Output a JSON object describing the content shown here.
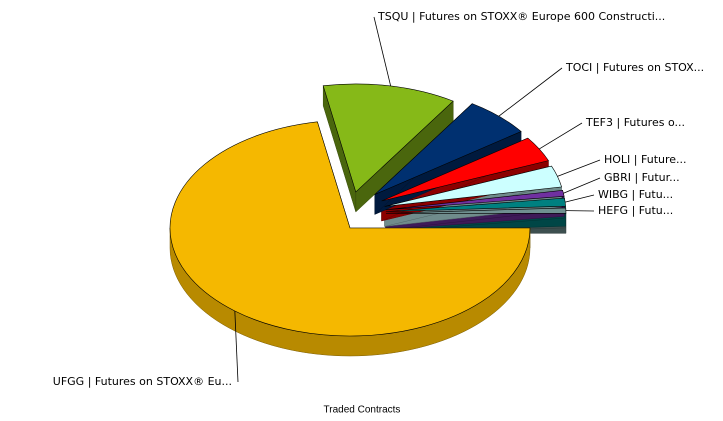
{
  "chart_data": {
    "type": "pie",
    "title": "Traded Contracts",
    "categories": [
      "HEFG | Futu...",
      "WIBG | Futu...",
      "GBRI | Futur...",
      "HOLI | Future...",
      "TEF3 | Futures o...",
      "TOCI | Futures on STOX...",
      "TSQU | Futures on STOXX® Europe 600 Constructi...",
      "UFGG | Futures on STOXX® Eu..."
    ],
    "values": [
      0.8,
      1.2,
      0.9,
      3.2,
      3.8,
      6,
      12,
      72.1
    ],
    "colors": [
      "#6f9090",
      "#008080",
      "#7030a0",
      "#ccffff",
      "#ff0000",
      "#003070",
      "#86b918",
      "#f5b800"
    ]
  }
}
